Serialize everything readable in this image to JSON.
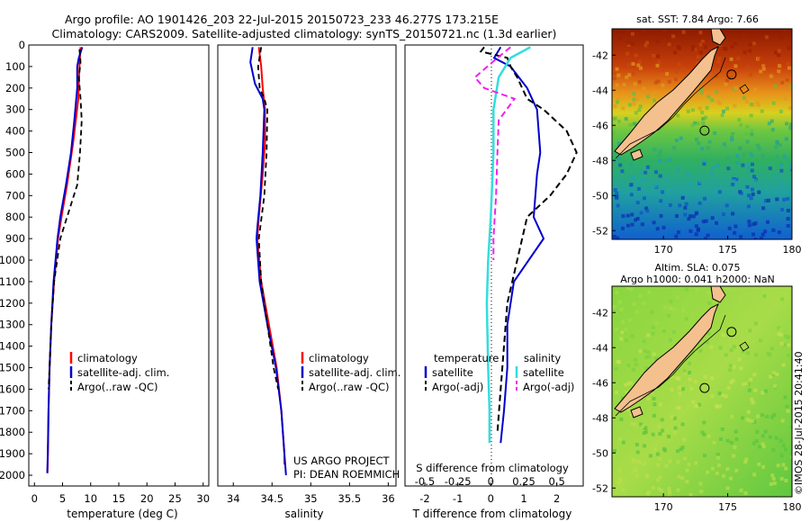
{
  "header": {
    "line1": "Argo profile: AO 1901426_203 22-Jul-2015 20150723_233 46.277S 173.215E",
    "line2": "Climatology: CARS2009. Satellite-adjusted climatology: synTS_20150721.nc (1.3d earlier)"
  },
  "credits": {
    "project": "US ARGO PROJECT",
    "pi": "PI: DEAN ROEMMICH",
    "stamp": "©IMOS 28-Jul-2015 20:41:40"
  },
  "colors": {
    "climatology": "#ff0000",
    "satellite": "#0000cc",
    "argo": "#000000",
    "salinity_satellite": "#33dddd",
    "salinity_argo": "#ee22ee",
    "land": "#f4c08e"
  },
  "chart_data": [
    {
      "type": "line",
      "xlabel": "temperature (deg C)",
      "xlim": [
        -1,
        31
      ],
      "xticks": [
        0,
        5,
        10,
        15,
        20,
        25,
        30
      ],
      "ylim": [
        0,
        2050
      ],
      "yticks": [
        0,
        100,
        200,
        300,
        400,
        500,
        600,
        700,
        800,
        900,
        1000,
        1100,
        1200,
        1300,
        1400,
        1500,
        1600,
        1700,
        1800,
        1900,
        2000
      ],
      "legend": [
        "climatology",
        "satellite-adj. clim.",
        "Argo(..raw -QC)"
      ],
      "series": [
        {
          "name": "climatology",
          "points": [
            [
              8.2,
              10
            ],
            [
              8.0,
              100
            ],
            [
              7.8,
              250
            ],
            [
              6.9,
              450
            ],
            [
              5.8,
              650
            ],
            [
              4.8,
              800
            ],
            [
              4.2,
              900
            ],
            [
              3.5,
              1100
            ],
            [
              3.0,
              1300
            ],
            [
              2.7,
              1500
            ],
            [
              2.5,
              1700
            ],
            [
              2.4,
              1900
            ],
            [
              2.3,
              1990
            ]
          ]
        },
        {
          "name": "satellite-adj. clim.",
          "points": [
            [
              8.5,
              10
            ],
            [
              7.9,
              60
            ],
            [
              7.6,
              100
            ],
            [
              7.6,
              200
            ],
            [
              7.1,
              350
            ],
            [
              6.5,
              500
            ],
            [
              5.6,
              650
            ],
            [
              4.6,
              800
            ],
            [
              4.1,
              900
            ],
            [
              3.4,
              1100
            ],
            [
              3.0,
              1300
            ],
            [
              2.7,
              1500
            ],
            [
              2.5,
              1700
            ],
            [
              2.4,
              1850
            ],
            [
              2.3,
              1990
            ]
          ]
        },
        {
          "name": "Argo(..raw -QC)",
          "points": [
            [
              8.0,
              20
            ],
            [
              8.2,
              80
            ],
            [
              7.9,
              150
            ],
            [
              8.2,
              250
            ],
            [
              8.4,
              350
            ],
            [
              8.1,
              500
            ],
            [
              7.6,
              650
            ],
            [
              5.8,
              800
            ],
            [
              4.6,
              900
            ],
            [
              3.5,
              1100
            ],
            [
              3.0,
              1300
            ],
            [
              2.7,
              1500
            ],
            [
              2.5,
              1600
            ]
          ]
        }
      ]
    },
    {
      "type": "line",
      "xlabel": "salinity",
      "xlim": [
        33.8,
        36.1
      ],
      "xticks": [
        34,
        34.5,
        35,
        35.5,
        36
      ],
      "ylim": [
        0,
        2050
      ],
      "legend": [
        "climatology",
        "satellite-adj. clim.",
        "Argo(..raw -QC)"
      ],
      "series": [
        {
          "name": "climatology",
          "points": [
            [
              34.33,
              10
            ],
            [
              34.36,
              100
            ],
            [
              34.38,
              200
            ],
            [
              34.41,
              300
            ],
            [
              34.41,
              450
            ],
            [
              34.38,
              600
            ],
            [
              34.33,
              800
            ],
            [
              34.31,
              900
            ],
            [
              34.36,
              1100
            ],
            [
              34.46,
              1300
            ],
            [
              34.56,
              1500
            ],
            [
              34.62,
              1700
            ],
            [
              34.66,
              1900
            ],
            [
              34.66,
              1950
            ]
          ]
        },
        {
          "name": "satellite-adj. clim.",
          "points": [
            [
              34.25,
              10
            ],
            [
              34.22,
              80
            ],
            [
              34.28,
              180
            ],
            [
              34.38,
              250
            ],
            [
              34.4,
              300
            ],
            [
              34.38,
              500
            ],
            [
              34.35,
              700
            ],
            [
              34.31,
              850
            ],
            [
              34.3,
              900
            ],
            [
              34.34,
              1100
            ],
            [
              34.44,
              1300
            ],
            [
              34.55,
              1500
            ],
            [
              34.62,
              1700
            ],
            [
              34.66,
              1900
            ],
            [
              34.68,
              2000
            ]
          ]
        },
        {
          "name": "Argo(..raw -QC)",
          "points": [
            [
              34.36,
              10
            ],
            [
              34.32,
              100
            ],
            [
              34.34,
              200
            ],
            [
              34.4,
              250
            ],
            [
              34.44,
              300
            ],
            [
              34.43,
              500
            ],
            [
              34.4,
              700
            ],
            [
              34.33,
              900
            ],
            [
              34.36,
              1100
            ],
            [
              34.44,
              1300
            ],
            [
              34.52,
              1500
            ],
            [
              34.58,
              1600
            ]
          ]
        }
      ]
    },
    {
      "type": "line",
      "xlabel": "T difference from climatology",
      "xlabel2": "S difference from climatology",
      "xlim": [
        -2.6,
        2.8
      ],
      "xticks": [
        -2,
        -1,
        0,
        1,
        2
      ],
      "xticks2": [
        -0.5,
        -0.25,
        0,
        0.25,
        0.5
      ],
      "ylim": [
        0,
        2050
      ],
      "legend_titles": [
        "temperature",
        "salinity"
      ],
      "legend": [
        "satellite",
        "Argo(-adj)",
        "satellite",
        "Argo(-adj)"
      ],
      "series": [
        {
          "name": "temperature satellite",
          "points": [
            [
              0.3,
              10
            ],
            [
              0.1,
              60
            ],
            [
              0.6,
              100
            ],
            [
              1.1,
              200
            ],
            [
              1.4,
              300
            ],
            [
              1.5,
              500
            ],
            [
              1.4,
              600
            ],
            [
              1.3,
              800
            ],
            [
              1.6,
              900
            ],
            [
              0.7,
              1100
            ],
            [
              0.5,
              1300
            ],
            [
              0.5,
              1500
            ],
            [
              0.4,
              1700
            ],
            [
              0.3,
              1850
            ]
          ]
        },
        {
          "name": "temperature Argo(-adj)",
          "points": [
            [
              -0.2,
              10
            ],
            [
              -0.3,
              30
            ],
            [
              0.5,
              60
            ],
            [
              0.6,
              100
            ],
            [
              0.8,
              150
            ],
            [
              1.1,
              250
            ],
            [
              1.6,
              300
            ],
            [
              2.3,
              400
            ],
            [
              2.6,
              500
            ],
            [
              2.3,
              600
            ],
            [
              1.8,
              700
            ],
            [
              1.1,
              800
            ],
            [
              0.8,
              1000
            ],
            [
              0.5,
              1200
            ],
            [
              0.4,
              1400
            ],
            [
              0.3,
              1600
            ],
            [
              0.2,
              1800
            ]
          ]
        },
        {
          "name": "salinity satellite",
          "points": [
            [
              0.3,
              10
            ],
            [
              0.15,
              60
            ],
            [
              0.06,
              150
            ],
            [
              0.02,
              300
            ],
            [
              0.02,
              500
            ],
            [
              0.0,
              800
            ],
            [
              -0.02,
              1000
            ],
            [
              -0.03,
              1200
            ],
            [
              -0.02,
              1500
            ],
            [
              -0.01,
              1700
            ],
            [
              -0.01,
              1850
            ]
          ]
        },
        {
          "name": "salinity Argo(-adj)",
          "points": [
            [
              0.15,
              10
            ],
            [
              0.05,
              60
            ],
            [
              -0.12,
              150
            ],
            [
              -0.05,
              200
            ],
            [
              0.18,
              250
            ],
            [
              0.06,
              350
            ],
            [
              0.05,
              500
            ],
            [
              0.04,
              700
            ],
            [
              0.03,
              800
            ],
            [
              0.02,
              900
            ],
            [
              0.02,
              1000
            ]
          ]
        }
      ]
    },
    {
      "type": "heatmap",
      "title": "sat. SST: 7.84  Argo: 7.66",
      "xticks": [
        170,
        175,
        180
      ],
      "yticks": [
        -42,
        -44,
        -46,
        -48,
        -50,
        -52
      ],
      "xlim": [
        166,
        180
      ],
      "ylim": [
        -52.5,
        -40.5
      ],
      "float_position": [
        173.2,
        -46.3
      ],
      "secondary_marker": [
        175.3,
        -43.1
      ]
    },
    {
      "type": "heatmap",
      "title_line1": "Altim. SLA: 0.075",
      "title_line2": "Argo h1000: 0.041  h2000: NaN",
      "xticks": [
        170,
        175,
        180
      ],
      "yticks": [
        -42,
        -44,
        -46,
        -48,
        -50,
        -52
      ],
      "xlim": [
        166,
        180
      ],
      "ylim": [
        -52.5,
        -40.5
      ],
      "float_position": [
        173.2,
        -46.3
      ],
      "secondary_marker": [
        175.3,
        -43.1
      ]
    }
  ]
}
